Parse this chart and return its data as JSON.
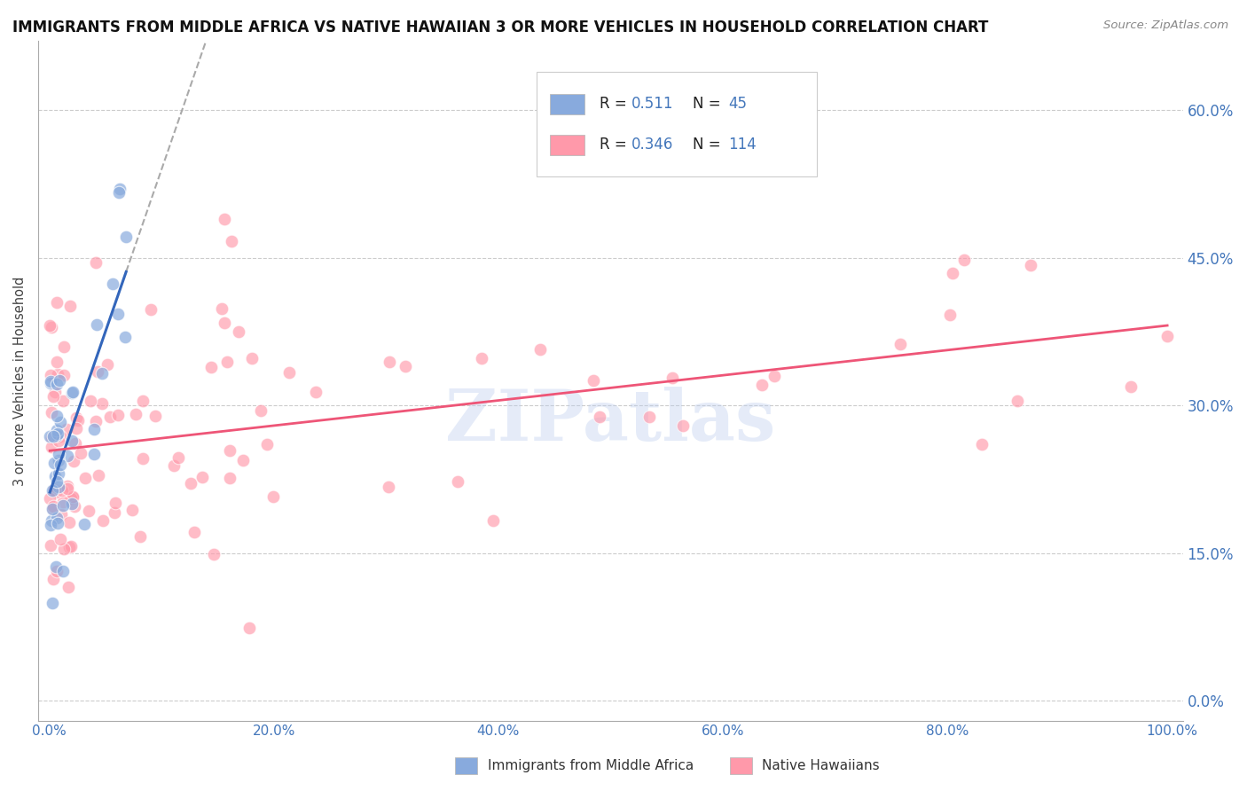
{
  "title": "IMMIGRANTS FROM MIDDLE AFRICA VS NATIVE HAWAIIAN 3 OR MORE VEHICLES IN HOUSEHOLD CORRELATION CHART",
  "source": "Source: ZipAtlas.com",
  "ylabel": "3 or more Vehicles in Household",
  "legend_label1": "Immigrants from Middle Africa",
  "legend_label2": "Native Hawaiians",
  "R1": "0.511",
  "N1": "45",
  "R2": "0.346",
  "N2": "114",
  "color1": "#88AADD",
  "color2": "#FF99AA",
  "trend_color1": "#3366BB",
  "trend_color2": "#EE5577",
  "dash_color": "#AAAAAA",
  "tick_color": "#4477BB",
  "value_color": "#4477BB",
  "label_color": "#333333",
  "background_color": "#FFFFFF",
  "xlim": [
    -0.01,
    1.01
  ],
  "ylim": [
    -0.02,
    0.67
  ],
  "xtick_positions": [
    0.0,
    0.2,
    0.4,
    0.6,
    0.8,
    1.0
  ],
  "xtick_labels": [
    "0.0%",
    "20.0%",
    "40.0%",
    "60.0%",
    "80.0%",
    "100.0%"
  ],
  "ytick_positions": [
    0.0,
    0.15,
    0.3,
    0.45,
    0.6
  ],
  "ytick_labels": [
    "0.0%",
    "15.0%",
    "30.0%",
    "45.0%",
    "60.0%"
  ],
  "watermark": "ZIPatlas",
  "watermark_color": "#BBCCEE"
}
